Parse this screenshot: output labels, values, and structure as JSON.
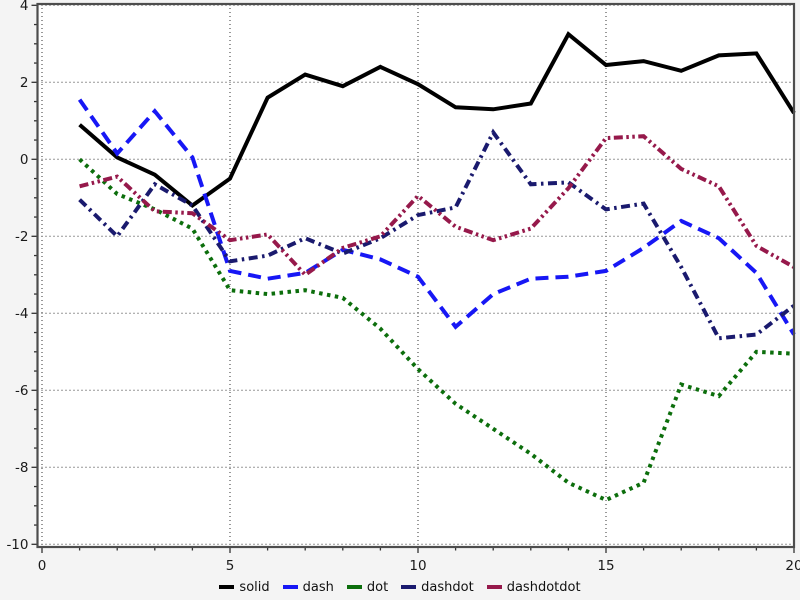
{
  "figure": {
    "background": "#f4f4f4",
    "plot_background": "#ffffff",
    "frame_color": "#4d4d4d",
    "grid_color": "#333333",
    "tick_color": "#333333",
    "label_color": "#1a1a1a"
  },
  "axes": {
    "x": {
      "min": 0,
      "max": 20,
      "tick_labels": [
        "0",
        "5",
        "10",
        "15",
        "20"
      ],
      "major_ticks": [
        0,
        5,
        10,
        15,
        20
      ],
      "minor_step": 1,
      "gridline_ticks": [
        0,
        5,
        10,
        15,
        20
      ]
    },
    "y": {
      "min": -10,
      "max": 4,
      "tick_labels": [
        "4",
        "2",
        "0",
        "-2",
        "-4",
        "-6",
        "-8",
        "-10"
      ],
      "major_ticks": [
        4,
        2,
        0,
        -2,
        -4,
        -6,
        -8,
        -10
      ],
      "minor_step": 0.5
    }
  },
  "chart_data": {
    "type": "line",
    "title": "",
    "xlabel": "",
    "ylabel": "",
    "xlim": [
      0,
      20
    ],
    "ylim": [
      -10,
      4
    ],
    "grid": true,
    "legend_position": "bottom-center",
    "x": [
      1,
      2,
      3,
      4,
      5,
      6,
      7,
      8,
      9,
      10,
      11,
      12,
      13,
      14,
      15,
      16,
      17,
      18,
      19,
      20
    ],
    "series": [
      {
        "name": "solid",
        "color": "#000000",
        "dash_style": "solid",
        "dasharray": "",
        "values": [
          0.9,
          0.05,
          -0.4,
          -1.2,
          -0.5,
          1.6,
          2.2,
          1.9,
          2.4,
          1.95,
          1.35,
          1.3,
          1.45,
          3.25,
          2.45,
          2.55,
          2.3,
          2.7,
          2.75,
          1.2
        ]
      },
      {
        "name": "dash",
        "color": "#1717f5",
        "dash_style": "dash",
        "dasharray": "13 7",
        "values": [
          1.55,
          0.15,
          1.25,
          0.05,
          -2.9,
          -3.1,
          -2.95,
          -2.35,
          -2.6,
          -3.05,
          -4.35,
          -3.5,
          -3.1,
          -3.05,
          -2.9,
          -2.3,
          -1.6,
          -2.05,
          -2.95,
          -4.55
        ]
      },
      {
        "name": "dot",
        "color": "#0c6e0c",
        "dash_style": "dot",
        "dasharray": "3.5 4.5",
        "values": [
          0.0,
          -0.9,
          -1.3,
          -1.8,
          -3.4,
          -3.5,
          -3.4,
          -3.6,
          -4.4,
          -5.45,
          -6.35,
          -7.0,
          -7.65,
          -8.4,
          -8.85,
          -8.4,
          -5.85,
          -6.15,
          -5.0,
          -5.05
        ]
      },
      {
        "name": "dashdot",
        "color": "#1a1a6e",
        "dash_style": "dashdot",
        "dasharray": "9 4.5 2.5 4.5",
        "values": [
          -1.05,
          -2.0,
          -0.65,
          -1.2,
          -2.65,
          -2.5,
          -2.05,
          -2.45,
          -2.05,
          -1.45,
          -1.25,
          0.7,
          -0.65,
          -0.6,
          -1.3,
          -1.15,
          -2.8,
          -4.65,
          -4.55,
          -3.8
        ]
      },
      {
        "name": "dashdotdot",
        "color": "#96194b",
        "dash_style": "dashdotdot",
        "dasharray": "9 3.5 2.5 3.5 2.5 3.5",
        "values": [
          -0.7,
          -0.45,
          -1.35,
          -1.4,
          -2.1,
          -1.95,
          -3.0,
          -2.3,
          -2.0,
          -0.95,
          -1.75,
          -2.1,
          -1.8,
          -0.75,
          0.55,
          0.6,
          -0.25,
          -0.7,
          -2.25,
          -2.8
        ]
      }
    ]
  },
  "legend": {
    "items": [
      {
        "label": "solid",
        "color": "#000000"
      },
      {
        "label": "dash",
        "color": "#1717f5"
      },
      {
        "label": "dot",
        "color": "#0c6e0c"
      },
      {
        "label": "dashdot",
        "color": "#1a1a6e"
      },
      {
        "label": "dashdotdot",
        "color": "#96194b"
      }
    ]
  }
}
